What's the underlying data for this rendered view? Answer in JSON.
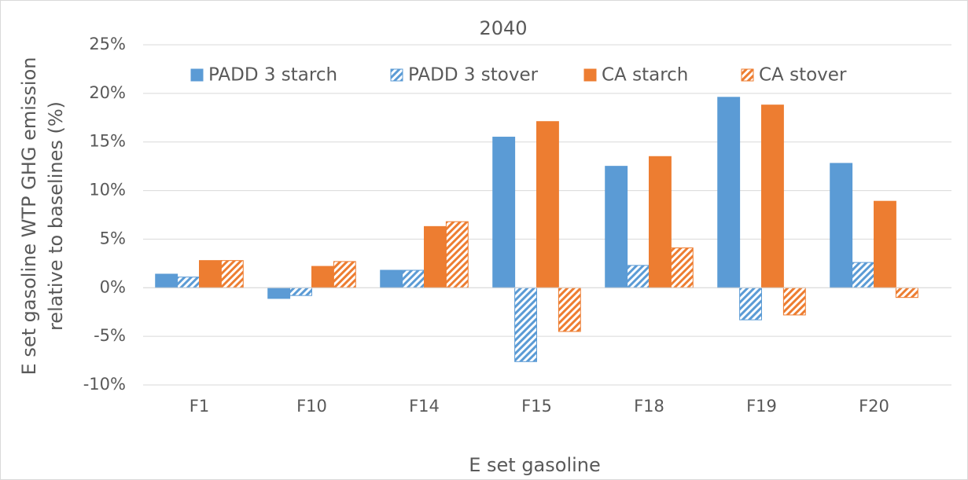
{
  "chart_data": {
    "type": "bar",
    "title": "2040",
    "x_label": "E set gasoline",
    "y_label": [
      "E set gasoline WTP GHG emission",
      "relative to baselines (%)"
    ],
    "categories": [
      "F1",
      "F10",
      "F14",
      "F15",
      "F18",
      "F19",
      "F20"
    ],
    "series": [
      {
        "name": "PADD 3 starch",
        "color": "#5b9bd5",
        "pattern": "solid",
        "values": [
          1.4,
          -1.1,
          1.8,
          15.5,
          12.5,
          19.6,
          12.8
        ]
      },
      {
        "name": "PADD 3 stover",
        "color": "#5b9bd5",
        "pattern": "hatched",
        "values": [
          1.1,
          -0.8,
          1.8,
          -7.6,
          2.3,
          -3.3,
          2.6
        ]
      },
      {
        "name": "CA starch",
        "color": "#ed7d31",
        "pattern": "solid",
        "values": [
          2.8,
          2.2,
          6.3,
          17.1,
          13.5,
          18.8,
          8.9
        ]
      },
      {
        "name": "CA stover",
        "color": "#ed7d31",
        "pattern": "hatched",
        "values": [
          2.8,
          2.7,
          6.8,
          -4.5,
          4.1,
          -2.8,
          -1.0
        ]
      }
    ],
    "ylim": [
      -10,
      25
    ],
    "yticks": [
      {
        "value": -10,
        "label": "-10%"
      },
      {
        "value": -5,
        "label": "-5%"
      },
      {
        "value": 0,
        "label": "0%"
      },
      {
        "value": 5,
        "label": "5%"
      },
      {
        "value": 10,
        "label": "10%"
      },
      {
        "value": 15,
        "label": "15%"
      },
      {
        "value": 20,
        "label": "20%"
      },
      {
        "value": 25,
        "label": "25%"
      }
    ],
    "grid": true,
    "legend": "top"
  }
}
